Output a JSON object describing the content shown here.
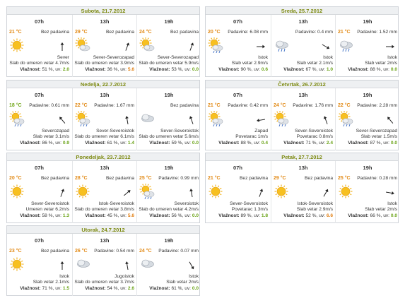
{
  "labels": {
    "temp_unit": "°C",
    "precip_prefix": "Padavine:",
    "no_precip": "Bez padavina",
    "humidity_label": "Vlažnost:",
    "uv_label": "uv:",
    "percent": "%"
  },
  "colors": {
    "day_title": "#7d8a12",
    "temp": "#e28a16",
    "uv_low": "#6aa317",
    "uv_mid": "#e07d10"
  },
  "days": [
    {
      "title": "Subota, 21.7.2012",
      "slots": [
        {
          "time": "07h",
          "temp": "21",
          "precip": "Bez padavina",
          "icon": "sun-icon",
          "arrow_deg": 180,
          "dir": "Sever",
          "wind": "Slab do umeren vetar 4.7m/s",
          "humidity": "51",
          "uv": "2.0"
        },
        {
          "time": "13h",
          "temp": "29",
          "precip": "Bez padavina",
          "icon": "partly-cloudy-icon",
          "arrow_deg": 200,
          "dir": "Sever-Severozapad",
          "wind": "Slab do umeren vetar 3.9m/s",
          "humidity": "36",
          "uv": "5.6"
        },
        {
          "time": "19h",
          "temp": "24",
          "precip": "Bez padavina",
          "icon": "partly-cloudy-icon",
          "arrow_deg": 200,
          "dir": "Sever-Severozapad",
          "wind": "Slab do umeren vetar 5.9m/s",
          "humidity": "53",
          "uv": "0.0"
        }
      ]
    },
    {
      "title": "Sreda, 25.7.2012",
      "slots": [
        {
          "time": "07h",
          "temp": "20",
          "precip": "Padavine: 6.08 mm",
          "icon": "sun-rain-icon",
          "arrow_deg": 270,
          "dir": "Istok",
          "wind": "Slab vetar 2.9m/s",
          "humidity": "90",
          "uv": "0.6"
        },
        {
          "time": "13h",
          "temp": "",
          "precip": "Padavine: 0.4 mm",
          "icon": "rain-cloud-icon",
          "arrow_deg": 300,
          "dir": "Istok",
          "wind": "Slab vetar 2.1m/s",
          "humidity": "67",
          "uv": "1.0"
        },
        {
          "time": "19h",
          "temp": "21",
          "precip": "Padavine: 1.52 mm",
          "icon": "rain-cloud-icon",
          "arrow_deg": 270,
          "dir": "Istok",
          "wind": "Slab vetar 2m/s",
          "humidity": "88",
          "uv": "0.0"
        }
      ]
    },
    {
      "title": "Nedelja, 22.7.2012",
      "slots": [
        {
          "time": "07h",
          "temp": "18",
          "precip": "Padavine: 0.61 mm",
          "icon": "sun-rain-icon",
          "arrow_deg": 140,
          "dir": "Severozapad",
          "wind": "Slab vetar 3.1m/s",
          "humidity": "86",
          "uv": "0.9"
        },
        {
          "time": "13h",
          "temp": "22",
          "precip": "Padavine: 1.67 mm",
          "icon": "sun-rain-icon",
          "arrow_deg": 170,
          "dir": "Sever-Severoistok",
          "wind": "Slab do umeren vetar 6.1m/s",
          "humidity": "61",
          "uv": "1.4"
        },
        {
          "time": "19h",
          "temp": "",
          "precip": "Bez padavina",
          "icon": "cloud-icon",
          "arrow_deg": 160,
          "dir": "Sever-Severoistok",
          "wind": "Slab do umeren vetar 5.6m/s",
          "humidity": "59",
          "uv": "0.0"
        }
      ]
    },
    {
      "title": "Četvrtak, 26.7.2012",
      "slots": [
        {
          "time": "07h",
          "temp": "21",
          "precip": "Padavine: 0.42 mm",
          "icon": "sun-rain-icon",
          "arrow_deg": 80,
          "dir": "Zapad",
          "wind": "Povetarac 1m/s",
          "humidity": "88",
          "uv": "0.4"
        },
        {
          "time": "13h",
          "temp": "24",
          "precip": "Padavine: 1.76 mm",
          "icon": "sun-rain-icon",
          "arrow_deg": 160,
          "dir": "Sever-Severoistok",
          "wind": "Povetarac 0.8m/s",
          "humidity": "71",
          "uv": "2.4"
        },
        {
          "time": "19h",
          "temp": "22",
          "precip": "Padavine: 2.28 mm",
          "icon": "sun-rain-icon",
          "arrow_deg": 140,
          "dir": "Sever-Severozapad",
          "wind": "Slab vetar 1.5m/s",
          "humidity": "87",
          "uv": "0.0"
        }
      ]
    },
    {
      "title": "Ponedeljak, 23.7.2012",
      "slots": [
        {
          "time": "07h",
          "temp": "20",
          "precip": "Bez padavina",
          "icon": "sun-icon",
          "arrow_deg": 200,
          "dir": "Sever-Severoistok",
          "wind": "Umeren vetar 6.2m/s",
          "humidity": "58",
          "uv": "1.3"
        },
        {
          "time": "13h",
          "temp": "28",
          "precip": "Bez padavina",
          "icon": "sun-icon",
          "arrow_deg": 230,
          "dir": "Istok-Severoistok",
          "wind": "Slab do umeren vetar 3.8m/s",
          "humidity": "45",
          "uv": "5.6"
        },
        {
          "time": "19h",
          "temp": "25",
          "precip": "Padavine: 0.99 mm",
          "icon": "sun-rain-icon",
          "arrow_deg": 170,
          "dir": "Severoistok",
          "wind": "Slab do umeren vetar 4.2m/s",
          "humidity": "56",
          "uv": "0.0"
        }
      ]
    },
    {
      "title": "Petak, 27.7.2012",
      "slots": [
        {
          "time": "07h",
          "temp": "21",
          "precip": "Bez padavina",
          "icon": "sun-icon",
          "arrow_deg": 200,
          "dir": "Sever-Severoistok",
          "wind": "Povetarac 1.3m/s",
          "humidity": "89",
          "uv": "1.8"
        },
        {
          "time": "13h",
          "temp": "29",
          "precip": "Bez padavina",
          "icon": "sun-icon",
          "arrow_deg": 210,
          "dir": "Istok-Severoistok",
          "wind": "Slab vetar 2.9m/s",
          "humidity": "52",
          "uv": "6.6"
        },
        {
          "time": "19h",
          "temp": "25",
          "precip": "Padavine: 0.28 mm",
          "icon": "sun-icon",
          "arrow_deg": 280,
          "dir": "Istok",
          "wind": "Slab vetar 2m/s",
          "humidity": "66",
          "uv": "0.0"
        }
      ]
    },
    {
      "title": "Utorak, 24.7.2012",
      "slots": [
        {
          "time": "07h",
          "temp": "23",
          "precip": "Bez padavina",
          "icon": "sun-icon",
          "arrow_deg": 180,
          "dir": "Istok",
          "wind": "Slab vetar 2.1m/s",
          "humidity": "71",
          "uv": "1.5"
        },
        {
          "time": "13h",
          "temp": "26",
          "precip": "Padavine: 0.54 mm",
          "icon": "cloud-icon",
          "arrow_deg": 170,
          "dir": "Jugoistok",
          "wind": "Slab do umeren vetar 3.7m/s",
          "humidity": "54",
          "uv": "2.6"
        },
        {
          "time": "19h",
          "temp": "24",
          "precip": "Padavine: 0.07 mm",
          "icon": "cloud-icon",
          "arrow_deg": 330,
          "dir": "Istok",
          "wind": "Slab vetar 2m/s",
          "humidity": "61",
          "uv": "0.0"
        }
      ]
    }
  ]
}
